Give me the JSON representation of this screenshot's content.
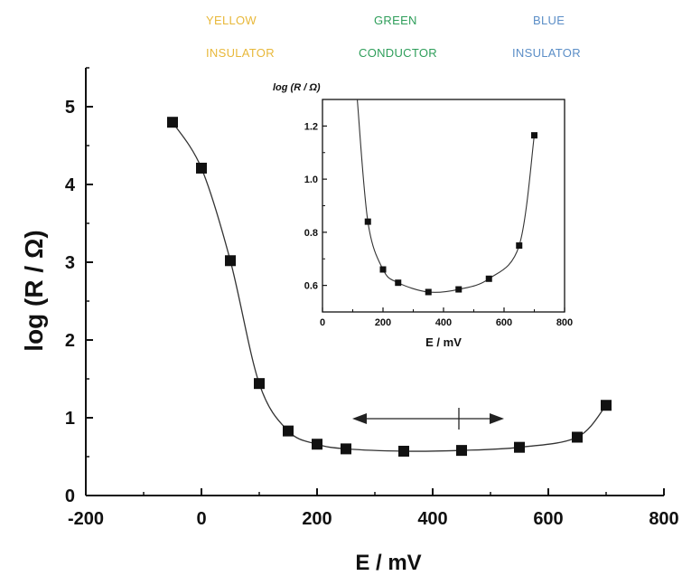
{
  "region_labels": {
    "yellow": {
      "color_name": "YELLOW",
      "state": "INSULATOR",
      "color": "#e8b83a"
    },
    "green": {
      "color_name": "GREEN",
      "state": "CONDUCTOR",
      "color": "#2e9e5a"
    },
    "blue": {
      "color_name": "BLUE",
      "state": "INSULATOR",
      "color": "#5b8ec7"
    }
  },
  "chart_data": [
    {
      "id": "main",
      "type": "line",
      "xlabel": "E / mV",
      "ylabel": "log (R / Ω)",
      "xlim": [
        -200,
        800
      ],
      "ylim": [
        0,
        5.5
      ],
      "xticks": [
        "-200",
        "0",
        "200",
        "400",
        "600",
        "800"
      ],
      "yticks": [
        "0",
        "1",
        "2",
        "3",
        "4",
        "5"
      ],
      "marker": "square",
      "series": [
        {
          "x": [
            -50,
            0,
            50,
            100,
            150,
            200,
            250,
            350,
            450,
            550,
            650,
            700
          ],
          "y": [
            4.8,
            4.21,
            3.02,
            1.44,
            0.83,
            0.66,
            0.6,
            0.57,
            0.58,
            0.62,
            0.75,
            1.16
          ]
        }
      ],
      "annotation": "double-headed arrow with vertical divider indicating the conductive region",
      "grid": false
    },
    {
      "id": "inset",
      "type": "line",
      "xlabel": "E / mV",
      "ylabel": "log (R / Ω)",
      "xlim": [
        0,
        800
      ],
      "ylim": [
        0.5,
        1.3
      ],
      "xticks": [
        "0",
        "200",
        "400",
        "600",
        "800"
      ],
      "yticks": [
        "0.6",
        "0.8",
        "1.0",
        "1.2"
      ],
      "marker": "square",
      "series": [
        {
          "x": [
            150,
            200,
            250,
            350,
            450,
            550,
            650,
            700
          ],
          "y": [
            0.84,
            0.66,
            0.61,
            0.575,
            0.585,
            0.625,
            0.75,
            1.165
          ]
        }
      ],
      "grid": false
    }
  ]
}
